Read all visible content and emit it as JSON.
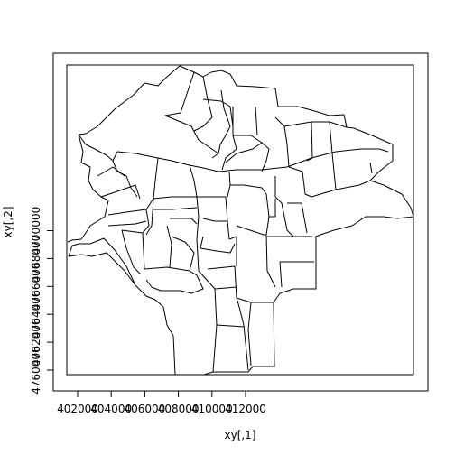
{
  "plot": {
    "xlabel": "xy[,1]",
    "ylabel": "xy[,2]",
    "xlim": [
      401700,
      412600
    ],
    "ylim": [
      4759700,
      4771000
    ]
  },
  "x_ticks": [
    {
      "value": 402000,
      "label": "402000"
    },
    {
      "value": 404000,
      "label": "404000"
    },
    {
      "value": 406000,
      "label": "406000"
    },
    {
      "value": 408000,
      "label": "408000"
    },
    {
      "value": 410000,
      "label": "410000"
    },
    {
      "value": 412000,
      "label": "412000"
    }
  ],
  "y_ticks": [
    {
      "value": 4760000,
      "label": "4760000"
    },
    {
      "value": 4762000,
      "label": "4762000"
    },
    {
      "value": 4764000,
      "label": "4764000"
    },
    {
      "value": 4766000,
      "label": "4766000"
    },
    {
      "value": 4768000,
      "label": "4768000"
    },
    {
      "value": 4770000,
      "label": "4770000"
    }
  ],
  "colors": {
    "stroke": "#000000",
    "background": "#ffffff"
  }
}
